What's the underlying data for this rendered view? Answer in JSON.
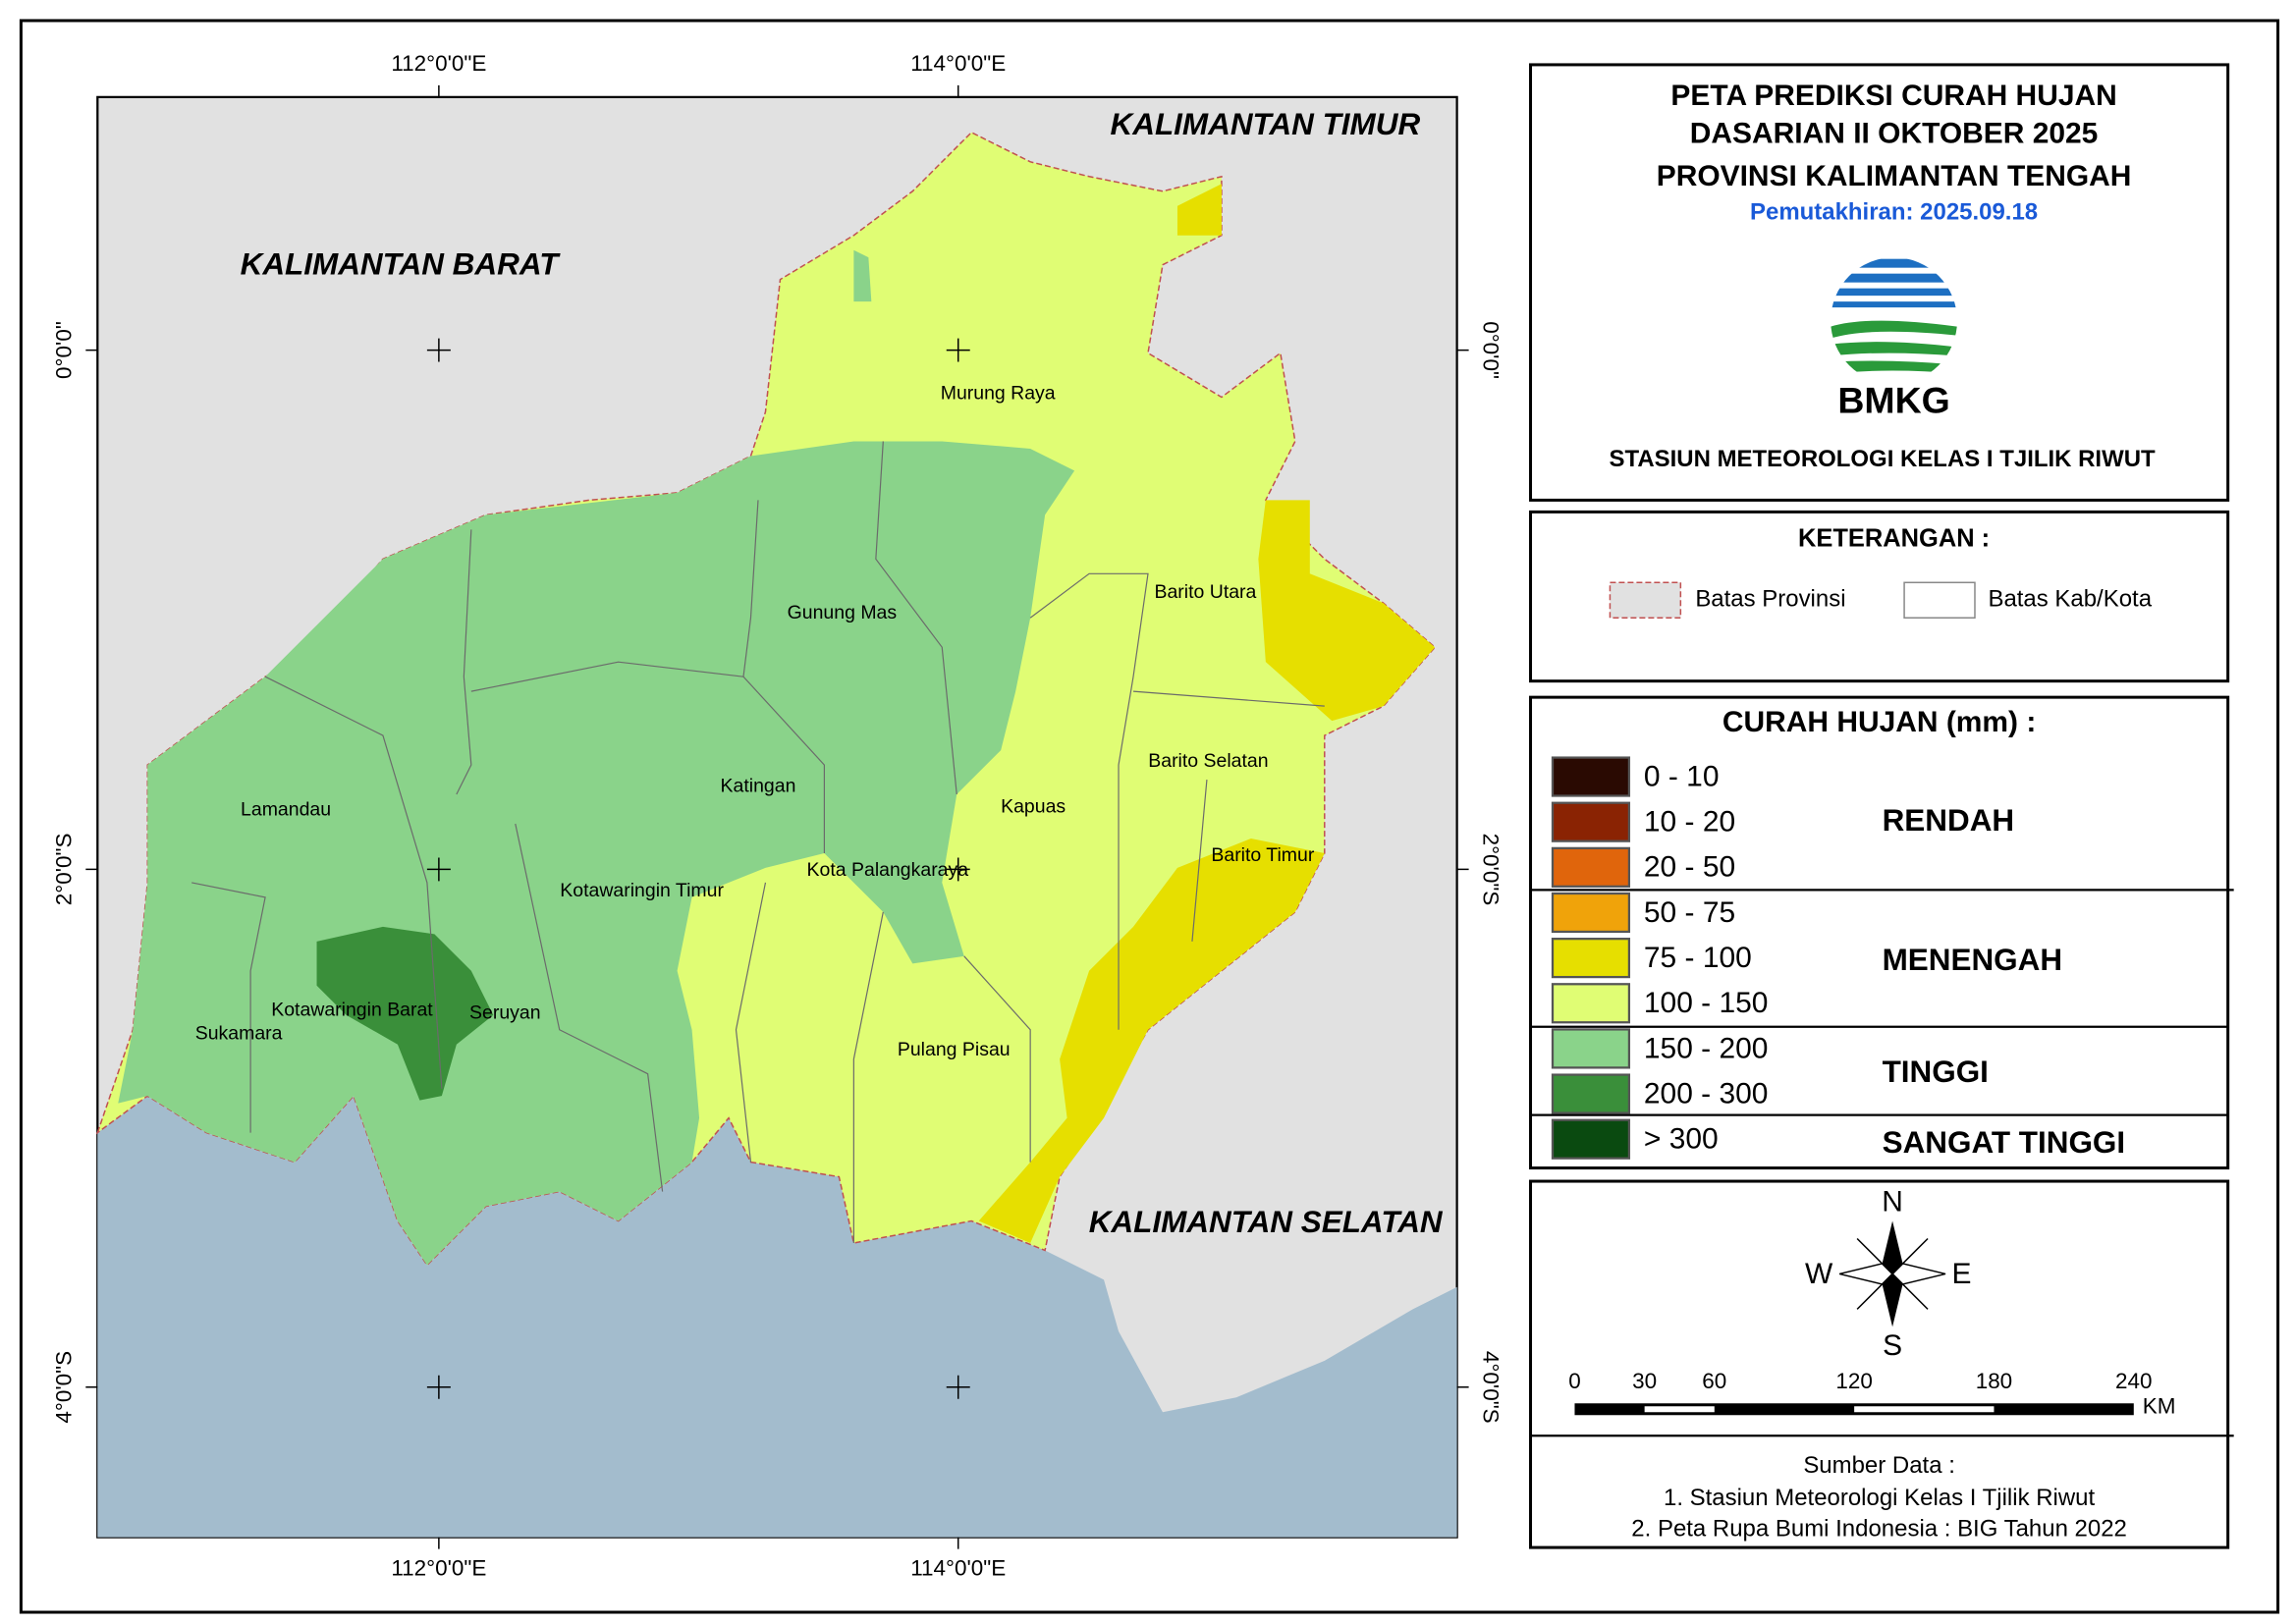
{
  "header": {
    "title": [
      "PETA PREDIKSI CURAH HUJAN",
      "DASARIAN II OKTOBER 2025",
      "PROVINSI KALIMANTAN TENGAH"
    ],
    "update": "Pemutakhiran: 2025.09.18",
    "logo": "BMKG",
    "station": "STASIUN METEOROLOGI KELAS I TJILIK RIWUT"
  },
  "legend": {
    "title": "KETERANGAN :",
    "items": [
      "Batas Provinsi",
      "Batas Kab/Kota"
    ]
  },
  "rainfall": {
    "title": "CURAH HUJAN (mm) :",
    "classes": [
      {
        "label": "0 - 10",
        "color": "#2a0a02"
      },
      {
        "label": "10 - 20",
        "color": "#8a2303"
      },
      {
        "label": "20 - 50",
        "color": "#e0650c"
      },
      {
        "label": "50 - 75",
        "color": "#f0a30a"
      },
      {
        "label": "75 - 100",
        "color": "#e6df00"
      },
      {
        "label": "100 - 150",
        "color": "#e0fd74"
      },
      {
        "label": "150 - 200",
        "color": "#8ad38a"
      },
      {
        "label": "200 - 300",
        "color": "#3a8f3a"
      },
      {
        "label": "> 300",
        "color": "#0a4a10"
      }
    ],
    "groups": [
      "RENDAH",
      "MENENGAH",
      "TINGGI",
      "SANGAT TINGGI"
    ]
  },
  "compass": {
    "n": "N",
    "e": "E",
    "s": "S",
    "w": "W"
  },
  "scale": {
    "ticks": [
      0,
      30,
      60,
      120,
      180,
      240
    ],
    "unit": "KM"
  },
  "source": {
    "title": "Sumber Data :",
    "lines": [
      "1. Stasiun Meteorologi Kelas I Tjilik Riwut",
      "2. Peta Rupa Bumi Indonesia : BIG Tahun 2022"
    ]
  },
  "map": {
    "x_labels": [
      "112°0'0\"E",
      "114°0'0\"E"
    ],
    "y_labels": [
      "0°0'0\"",
      "2°0'0\"S",
      "4°0'0\"S"
    ],
    "regions": [
      "KALIMANTAN TIMUR",
      "KALIMANTAN BARAT",
      "KALIMANTAN SELATAN"
    ],
    "districts": [
      "Murung Raya",
      "Barito Utara",
      "Gunung Mas",
      "Katingan",
      "Kapuas",
      "Barito Selatan",
      "Lamandau",
      "Barito Timur",
      "Kotawaringin Timur",
      "Kota Palangkaraya",
      "Kotawaringin Barat",
      "Seruyan",
      "Sukamara",
      "Pulang Pisau"
    ]
  }
}
